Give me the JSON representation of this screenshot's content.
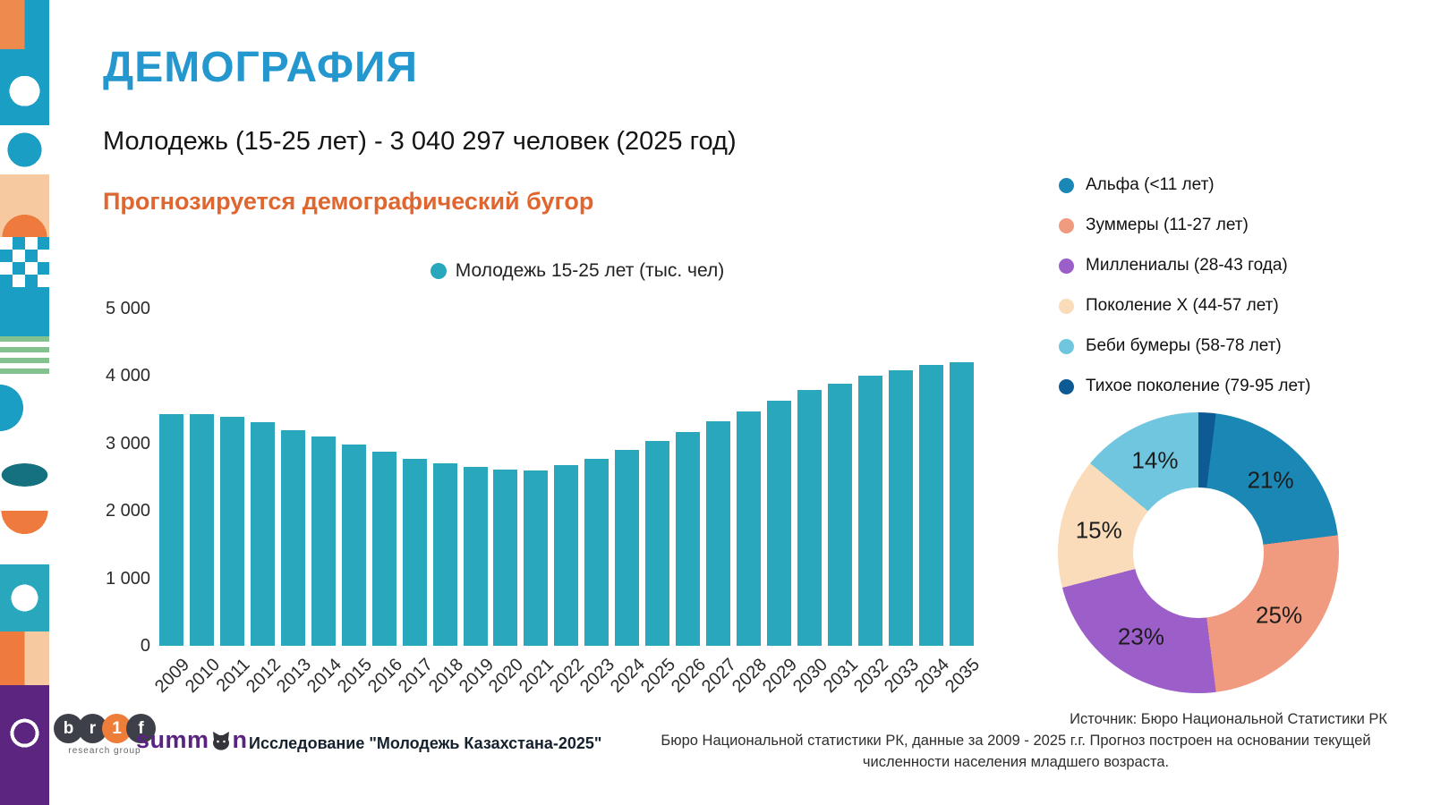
{
  "page": {
    "title": "ДЕМОГРАФИЯ",
    "subtitle": "Молодежь (15-25 лет) - 3 040 297 человек (2025 год)",
    "highlight": "Прогнозируется демографический бугор"
  },
  "colors": {
    "title_blue": "#2597cf",
    "highlight_orange": "#e0662f",
    "bar_teal": "#28a7bd",
    "alpha_blue": "#1b87b5",
    "zoomer_salmon": "#f09b80",
    "millennial_purple": "#9c5fc9",
    "genx_peach": "#fadcba",
    "boomer_lightblue": "#6fc6de",
    "silent_navy": "#0d5a94"
  },
  "chart_data": [
    {
      "type": "bar",
      "legend_label": "Молодежь 15-25 лет (тыс. чел)",
      "bar_color": "#28a7bd",
      "ylabel": "",
      "xlabel": "",
      "ylim": [
        0,
        5000
      ],
      "grid": false,
      "yticks": [
        "5 000",
        "4 000",
        "3 000",
        "2 000",
        "1 000",
        "0"
      ],
      "categories": [
        "2009",
        "2010",
        "2011",
        "2012",
        "2013",
        "2014",
        "2015",
        "2016",
        "2017",
        "2018",
        "2019",
        "2020",
        "2021",
        "2022",
        "2023",
        "2024",
        "2025",
        "2026",
        "2027",
        "2028",
        "2029",
        "2030",
        "2031",
        "2032",
        "2033",
        "2034",
        "2035"
      ],
      "values": [
        3430,
        3440,
        3390,
        3310,
        3200,
        3100,
        2980,
        2880,
        2770,
        2700,
        2650,
        2610,
        2600,
        2680,
        2770,
        2900,
        3040,
        3170,
        3330,
        3480,
        3630,
        3790,
        3890,
        4000,
        4090,
        4160,
        4200
      ]
    },
    {
      "type": "pie",
      "donut": true,
      "slices": [
        {
          "label": "Тихое поколение (79-95 лет)",
          "value": 2,
          "color": "#0d5a94",
          "label_shown": false
        },
        {
          "label": "Альфа (<11 лет)",
          "value": 21,
          "color": "#1b87b5",
          "label_shown": true
        },
        {
          "label": "Зуммеры (11-27 лет)",
          "value": 25,
          "color": "#f09b80",
          "label_shown": true
        },
        {
          "label": "Миллениалы (28-43 года)",
          "value": 23,
          "color": "#9c5fc9",
          "label_shown": true
        },
        {
          "label": "Поколение X (44-57 лет)",
          "value": 15,
          "color": "#fadcba",
          "label_shown": true
        },
        {
          "label": "Беби бумеры (58-78 лет)",
          "value": 14,
          "color": "#6fc6de",
          "label_shown": true
        }
      ],
      "legend": [
        {
          "label": "Альфа (<11 лет)",
          "color": "#1b87b5"
        },
        {
          "label": "Зуммеры (11-27 лет)",
          "color": "#f09b80"
        },
        {
          "label": "Миллениалы (28-43 года)",
          "color": "#9c5fc9"
        },
        {
          "label": "Поколение X (44-57 лет)",
          "color": "#fadcba"
        },
        {
          "label": "Беби бумеры (58-78 лет)",
          "color": "#6fc6de"
        },
        {
          "label": "Тихое поколение (79-95 лет)",
          "color": "#0d5a94"
        }
      ],
      "legend_position": "top-right"
    }
  ],
  "footer": {
    "brif_letters": [
      "b",
      "r",
      "1",
      "f"
    ],
    "brif_tagline": "research group",
    "summon_left": "summ",
    "summon_right": "n",
    "study_label": "Исследование \"Молодежь Казахстана-2025\"",
    "source_line1": "Источник:  Бюро Национальной Статистики РК",
    "source_para": "Бюро Национальной статистики РК, данные за 2009 - 2025 г.г. Прогноз построен на основании текущей численности населения младшего возраста."
  }
}
